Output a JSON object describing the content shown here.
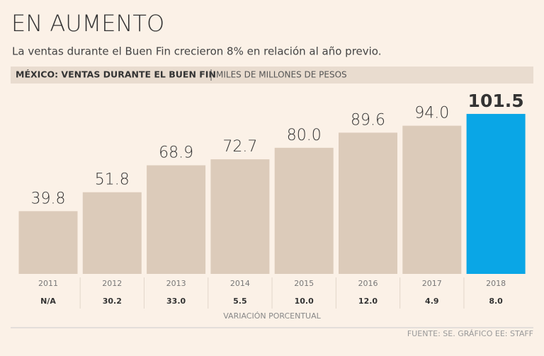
{
  "chart_data": {
    "type": "bar",
    "title": "EN AUMENTO",
    "subtitle": "La ventas durante el Buen Fin crecieron 8% en relación al año previo.",
    "header": "MÉXICO: VENTAS DURANTE EL BUEN FIN",
    "unit_label": "MILES DE MILLONES DE PESOS",
    "categories": [
      "2011",
      "2012",
      "2013",
      "2014",
      "2015",
      "2016",
      "2017",
      "2018"
    ],
    "values": [
      39.8,
      51.8,
      68.9,
      72.7,
      80.0,
      89.6,
      94.0,
      101.5
    ],
    "value_labels": [
      "39.8",
      "51.8",
      "68.9",
      "72.7",
      "80.0",
      "89.6",
      "94.0",
      "101.5"
    ],
    "colors": [
      "#dccbba",
      "#dccbba",
      "#dccbba",
      "#dccbba",
      "#dccbba",
      "#dccbba",
      "#dccbba",
      "#0aa6e6"
    ],
    "variation": [
      "N/A",
      "30.2",
      "33.0",
      "5.5",
      "10.0",
      "12.0",
      "4.9",
      "8.0"
    ],
    "variation_label": "VARIACIÓN PORCENTUAL",
    "source": "FUENTE: SE. GRÁFICO EE: STAFF",
    "ylim": [
      0,
      110
    ]
  }
}
